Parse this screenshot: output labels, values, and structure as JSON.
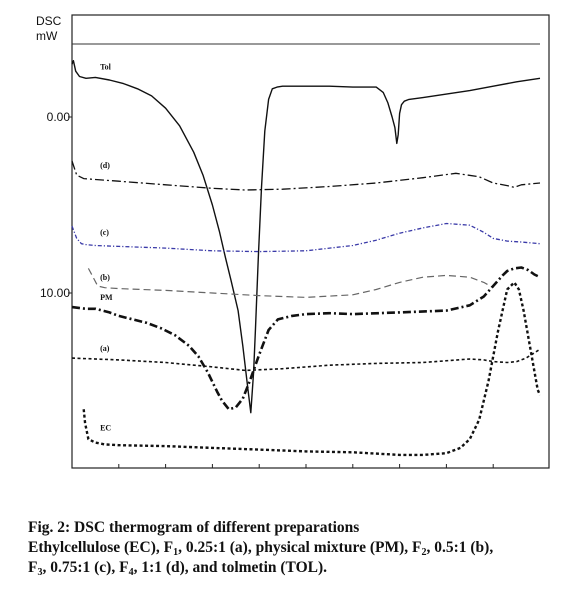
{
  "chart_data": {
    "type": "line",
    "title": "",
    "ylabel_lines": [
      "DSC",
      "mW"
    ],
    "y_ticks": [
      {
        "value": 0,
        "label": "0.00"
      },
      {
        "value": 10,
        "label": "10.00"
      }
    ],
    "y_range": [
      22,
      -5.5
    ],
    "x_range": [
      0,
      100
    ],
    "x_tick_count": 10,
    "grid": false,
    "series": [
      {
        "name": "Tol",
        "color": "#111111",
        "dash": "",
        "width": 1.4,
        "x": [
          0.0,
          0.3,
          0.8,
          1.6,
          3.0,
          5.0,
          8.0,
          11.0,
          14.0,
          17.0,
          20.0,
          23.0,
          26.0,
          28.0,
          30.0,
          31.5,
          32.8,
          34.0,
          35.5,
          36.5,
          37.6,
          38.2,
          38.8,
          39.2,
          39.8,
          40.5,
          41.2,
          42.0,
          42.8,
          43.8,
          45.0,
          46.5,
          48.0,
          50.0,
          55.0,
          60.0,
          65.0,
          66.5,
          67.5,
          68.4,
          69.0,
          69.4,
          69.7,
          70.0,
          70.4,
          71.0,
          72.0,
          75.0,
          80.0,
          85.0,
          90.0,
          95.0,
          100.0
        ],
        "y": [
          -3.0,
          -3.2,
          -2.6,
          -2.3,
          -2.2,
          -2.25,
          -2.1,
          -1.9,
          -1.6,
          -1.2,
          -0.5,
          0.5,
          2.0,
          3.3,
          5.0,
          6.5,
          8.0,
          9.3,
          11.0,
          13.0,
          15.5,
          16.8,
          14.5,
          12.0,
          8.0,
          4.0,
          0.8,
          -1.0,
          -1.6,
          -1.7,
          -1.75,
          -1.75,
          -1.75,
          -1.75,
          -1.75,
          -1.7,
          -1.7,
          -1.4,
          -0.8,
          0.0,
          0.6,
          1.5,
          1.0,
          -0.2,
          -0.7,
          -0.9,
          -1.0,
          -1.1,
          -1.3,
          -1.5,
          -1.75,
          -2.0,
          -2.2
        ],
        "label": "Tol",
        "label_at": [
          6,
          -2.7
        ]
      },
      {
        "name": "(d)",
        "color": "#111111",
        "dash": "9 3 2 3",
        "width": 1.3,
        "x": [
          0.0,
          1.0,
          2.5,
          5.0,
          10.0,
          20.0,
          30.0,
          37.0,
          45.0,
          55.0,
          65.0,
          75.0,
          82.0,
          87.0,
          90.0,
          93.0,
          94.5,
          96.0,
          98.0,
          100.0
        ],
        "y": [
          2.5,
          3.3,
          3.5,
          3.55,
          3.65,
          3.85,
          4.05,
          4.15,
          4.1,
          3.95,
          3.75,
          3.45,
          3.2,
          3.4,
          3.75,
          3.9,
          4.0,
          3.85,
          3.8,
          3.75
        ],
        "label": "(d)",
        "label_at": [
          6,
          2.9
        ]
      },
      {
        "name": "(c)",
        "color": "#3a3aa8",
        "dash": "4 2 1.2 2",
        "width": 1.3,
        "x": [
          0.0,
          1.0,
          2.0,
          3.0,
          5.0,
          10.0,
          20.0,
          30.0,
          40.0,
          50.0,
          60.0,
          65.0,
          70.0,
          75.0,
          80.0,
          85.0,
          88.0,
          90.0,
          93.0,
          96.0,
          100.0
        ],
        "y": [
          6.2,
          6.9,
          7.2,
          7.25,
          7.3,
          7.35,
          7.45,
          7.6,
          7.65,
          7.6,
          7.3,
          7.0,
          6.6,
          6.3,
          6.05,
          6.15,
          6.55,
          6.9,
          7.05,
          7.1,
          7.2
        ],
        "label": "(c)",
        "label_at": [
          6,
          6.7
        ]
      },
      {
        "name": "(b)",
        "color": "#666666",
        "dash": "7 4",
        "width": 1.2,
        "x": [
          3.5,
          4.5,
          5.5,
          7.0,
          10.0,
          20.0,
          30.0,
          40.0,
          50.0,
          60.0,
          65.0,
          70.0,
          75.0,
          80.0,
          85.0,
          88.0,
          90.0
        ],
        "y": [
          8.6,
          9.1,
          9.6,
          9.7,
          9.75,
          9.85,
          10.0,
          10.15,
          10.25,
          10.1,
          9.8,
          9.4,
          9.1,
          9.0,
          9.1,
          9.4,
          9.7
        ],
        "label": "(b)",
        "label_at": [
          6,
          9.25
        ]
      },
      {
        "name": "PM",
        "color": "#111111",
        "dash": "8 3 2 3",
        "width": 2.6,
        "x": [
          0.0,
          3.0,
          5.0,
          8.0,
          10.0,
          13.0,
          16.0,
          19.0,
          22.0,
          25.0,
          27.0,
          29.0,
          31.0,
          32.0,
          33.5,
          35.0,
          36.5,
          38.0,
          40.0,
          42.0,
          44.0,
          47.0,
          50.0,
          55.0,
          60.0,
          70.0,
          80.0,
          85.0,
          88.0,
          90.0,
          92.0,
          93.0,
          94.5,
          96.0,
          97.5,
          98.8,
          100.0
        ],
        "y": [
          10.8,
          10.9,
          10.9,
          11.1,
          11.3,
          11.5,
          11.7,
          12.0,
          12.4,
          13.0,
          13.6,
          14.5,
          15.6,
          16.1,
          16.6,
          16.5,
          16.0,
          15.0,
          13.5,
          12.1,
          11.5,
          11.3,
          11.2,
          11.15,
          11.2,
          11.1,
          11.0,
          10.7,
          10.2,
          9.6,
          9.0,
          8.75,
          8.6,
          8.55,
          8.7,
          8.95,
          9.1
        ],
        "label": "PM",
        "label_at": [
          6,
          10.4
        ]
      },
      {
        "name": "(a)",
        "color": "#111111",
        "dash": "3 2.5",
        "width": 1.6,
        "x": [
          0.0,
          10.0,
          20.0,
          30.0,
          37.0,
          45.0,
          55.0,
          65.0,
          75.0,
          85.0,
          88.0,
          90.0,
          93.0,
          95.0,
          97.0,
          100.0
        ],
        "y": [
          13.7,
          13.8,
          13.95,
          14.2,
          14.4,
          14.3,
          14.1,
          14.0,
          13.95,
          13.75,
          13.8,
          13.9,
          13.95,
          13.9,
          13.7,
          13.2
        ],
        "label": "(a)",
        "label_at": [
          6,
          13.3
        ]
      },
      {
        "name": "EC",
        "color": "#111111",
        "dash": "3 2.5",
        "width": 2.4,
        "x": [
          2.5,
          2.8,
          3.5,
          5.0,
          7.0,
          10.0,
          20.0,
          30.0,
          40.0,
          50.0,
          60.0,
          70.0,
          75.0,
          80.0,
          83.0,
          85.0,
          87.0,
          89.0,
          91.0,
          93.0,
          94.5,
          95.5,
          96.5,
          97.5,
          98.5,
          99.5,
          100.0
        ],
        "y": [
          16.6,
          17.4,
          18.3,
          18.5,
          18.6,
          18.65,
          18.7,
          18.8,
          18.9,
          19.0,
          19.05,
          19.2,
          19.2,
          19.1,
          18.8,
          18.3,
          17.2,
          15.0,
          12.2,
          9.8,
          9.4,
          9.8,
          11.0,
          12.5,
          14.0,
          15.5,
          15.8
        ],
        "label": "EC",
        "label_at": [
          6,
          17.8
        ]
      }
    ]
  },
  "caption": {
    "line1": "Fig. 2: DSC thermogram of different preparations",
    "line2": {
      "p1": "Ethylcellulose (EC), F",
      "s1": "1",
      "p2": ", 0.25:1 (a), physical mixture (PM), F",
      "s2": "2",
      "p3": ", 0.5:1 (b),"
    },
    "line3": {
      "p1": "F",
      "s1": "3",
      "p2": ", 0.75:1 (c), F",
      "s2": "4",
      "p3": ", 1:1 (d), and tolmetin (TOL)."
    }
  }
}
